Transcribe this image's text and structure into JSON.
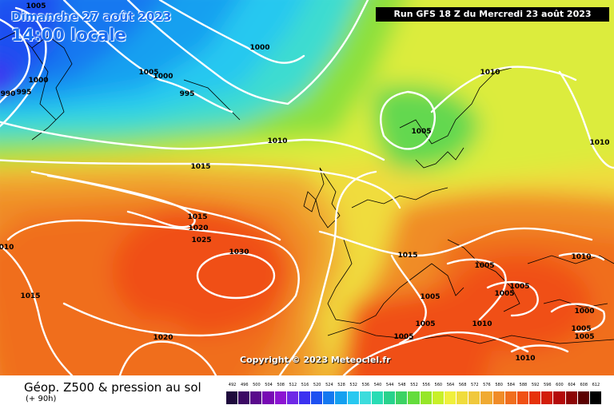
{
  "header": {
    "date": "Dimanche 27 août 2023",
    "time": "14:00 locale",
    "run": "Run GFS 18 Z du Mercredi 23 août 2023"
  },
  "copyright": "Copyright © 2023 Meteociel.fr",
  "legend": {
    "title": "Géop. Z500 & pression au sol",
    "subtitle": "(+ 90h)",
    "scale_values": [
      "492",
      "496",
      "500",
      "504",
      "508",
      "512",
      "516",
      "520",
      "524",
      "528",
      "532",
      "536",
      "540",
      "544",
      "548",
      "552",
      "556",
      "560",
      "564",
      "568",
      "572",
      "576",
      "580",
      "584",
      "588",
      "592",
      "596",
      "600",
      "604",
      "608",
      "612"
    ],
    "scale_colors": [
      "#1e0a3c",
      "#3c0a64",
      "#5a0a8c",
      "#780ab4",
      "#8c14d2",
      "#6e28e6",
      "#3c32f0",
      "#1e50f0",
      "#1478f0",
      "#14a0f0",
      "#28c8f0",
      "#3cdcdc",
      "#28dcb4",
      "#28d28c",
      "#3cd264",
      "#64dc3c",
      "#96e628",
      "#c8f028",
      "#f0f03c",
      "#f0dc3c",
      "#f0c83c",
      "#f0aa32",
      "#f08c28",
      "#f06e1e",
      "#f05014",
      "#e6320a",
      "#d21e0a",
      "#b40a0a",
      "#8c0505",
      "#5a0000",
      "#000000"
    ]
  },
  "pressure_labels": [
    {
      "text": "1005"
    },
    {
      "text": "1000"
    },
    {
      "text": "1000"
    },
    {
      "text": "995"
    },
    {
      "text": "990"
    },
    {
      "text": "1005"
    },
    {
      "text": "1000"
    },
    {
      "text": "995"
    },
    {
      "text": "1010"
    },
    {
      "text": "1015"
    },
    {
      "text": "1015"
    },
    {
      "text": "1020"
    },
    {
      "text": "1025"
    },
    {
      "text": "1030"
    },
    {
      "text": "010"
    },
    {
      "text": "1015"
    },
    {
      "text": "1020"
    },
    {
      "text": "1005"
    },
    {
      "text": "1010"
    },
    {
      "text": "1010"
    },
    {
      "text": "1015"
    },
    {
      "text": "1005"
    },
    {
      "text": "1005"
    },
    {
      "text": "1005"
    },
    {
      "text": "1010"
    },
    {
      "text": "1005"
    },
    {
      "text": "1010"
    },
    {
      "text": "1000"
    },
    {
      "text": "1005"
    },
    {
      "text": "1005"
    },
    {
      "text": "1010"
    },
    {
      "text": "1005"
    },
    {
      "text": "1005"
    }
  ]
}
